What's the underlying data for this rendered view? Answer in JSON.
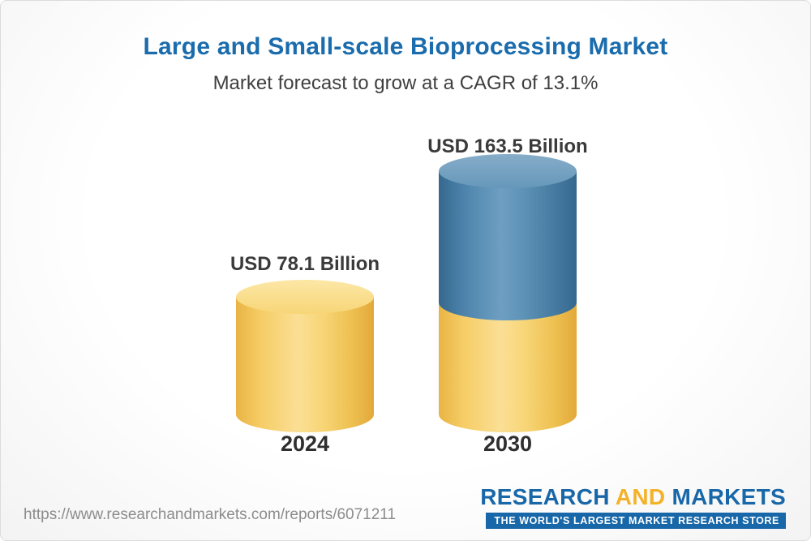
{
  "header": {
    "title": "Large and Small-scale Bioprocessing Market",
    "subtitle": "Market forecast to grow at a CAGR of 13.1%"
  },
  "chart_data": {
    "type": "bar",
    "categories": [
      "2024",
      "2030"
    ],
    "values": [
      78.1,
      163.5
    ],
    "unit": "USD Billion",
    "data_labels": [
      "USD 78.1 Billion",
      "USD 163.5 Billion"
    ],
    "title": "Large and Small-scale Bioprocessing Market",
    "subtitle": "Market forecast to grow at a CAGR of 13.1%",
    "cagr": "13.1%",
    "bar_style": "3d-cylinder",
    "legend": "none",
    "axes": "none",
    "colors": {
      "bar_2024": "#f6cd66",
      "bar_2030_upper": "#4d83ab",
      "bar_2030_lower": "#f6cd66",
      "title": "#1a6cad"
    },
    "notes": "2030 cylinder is stacked: lower yellow segment equals 2024 value, upper blue segment is the growth to 163.5"
  },
  "footer": {
    "url": "https://www.researchandmarkets.com/reports/6071211",
    "logo": {
      "part1": "RESEARCH",
      "part2": "AND",
      "part3": "MARKETS",
      "tagline": "THE WORLD'S LARGEST MARKET RESEARCH STORE"
    }
  }
}
